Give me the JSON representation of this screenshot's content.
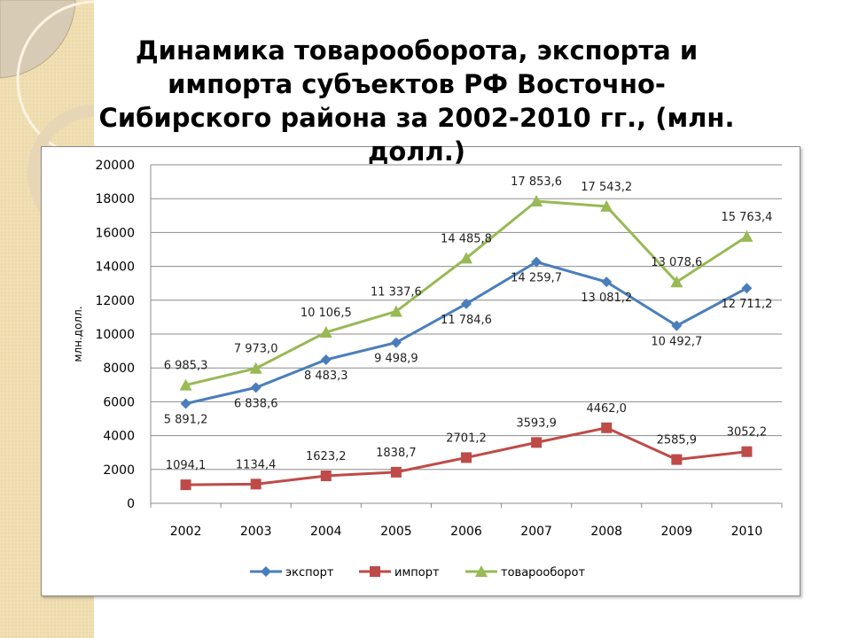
{
  "title": "Динамика товарооборота, экспорта и импорта субъектов РФ Восточно-Сибирского района за 2002-2010 гг., (млн. долл.)",
  "chart_data": {
    "type": "line",
    "title": "Динамика товарооборота, экспорта и импорта субъектов РФ Восточно-Сибирского района за 2002-2010 гг., (млн. долл.)",
    "xlabel": "",
    "ylabel": "млн.долл.",
    "ylim": [
      0,
      20000
    ],
    "yticks": [
      0,
      2000,
      4000,
      6000,
      8000,
      10000,
      12000,
      14000,
      16000,
      18000,
      20000
    ],
    "grid": true,
    "legend": "bottom",
    "categories": [
      "2002",
      "2003",
      "2004",
      "2005",
      "2006",
      "2007",
      "2008",
      "2009",
      "2010"
    ],
    "series": [
      {
        "name": "экспорт",
        "color": "#4a7ebb",
        "marker": "diamond",
        "values": [
          5891.2,
          6838.6,
          8483.3,
          9498.9,
          11784.6,
          14259.7,
          13081.2,
          10492.7,
          12711.2
        ],
        "labels": [
          "5 891,2",
          "6 838,6",
          "8 483,3",
          "9 498,9",
          "11 784,6",
          "14 259,7",
          "13 081,2",
          "10 492,7",
          "12 711,2"
        ]
      },
      {
        "name": "импорт",
        "color": "#be4b48",
        "marker": "square",
        "values": [
          1094.1,
          1134.4,
          1623.2,
          1838.7,
          2701.2,
          3593.9,
          4462.0,
          2585.9,
          3052.2
        ],
        "labels": [
          "1094,1",
          "1134,4",
          "1623,2",
          "1838,7",
          "2701,2",
          "3593,9",
          "4462,0",
          "2585,9",
          "3052,2"
        ]
      },
      {
        "name": "товарооборот",
        "color": "#98b954",
        "marker": "triangle",
        "values": [
          6985.3,
          7973.0,
          10106.5,
          11337.6,
          14485.8,
          17853.6,
          17543.2,
          13078.6,
          15763.4
        ],
        "labels": [
          "6 985,3",
          "7 973,0",
          "10 106,5",
          "11 337,6",
          "14 485,8",
          "17 853,6",
          "17 543,2",
          "13 078,6",
          "15 763,4"
        ]
      }
    ]
  }
}
